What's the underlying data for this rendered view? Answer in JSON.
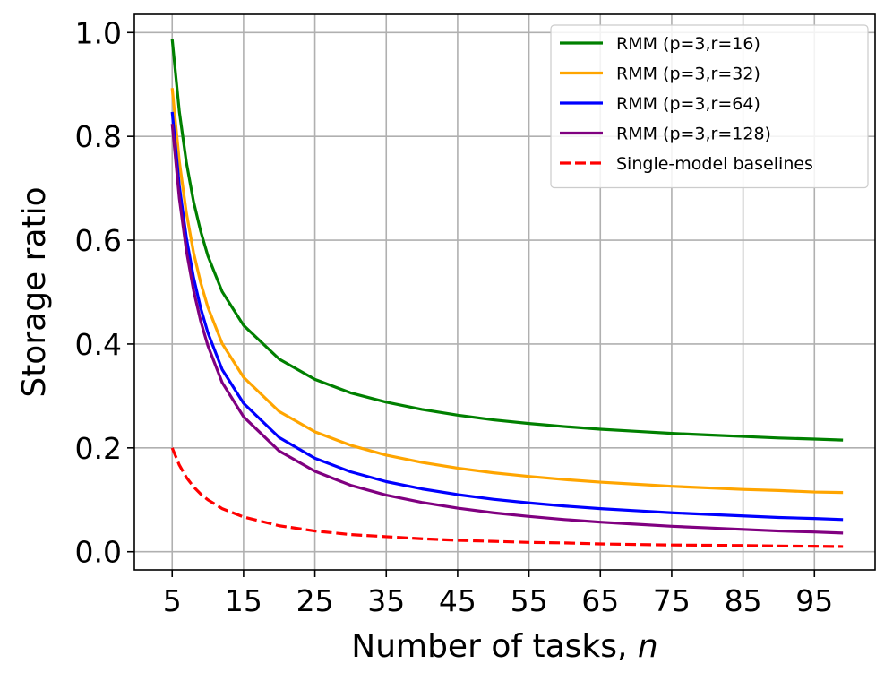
{
  "chart_data": {
    "type": "line",
    "title": "",
    "xlabel": "Number of tasks, ",
    "xlabel_var": "n",
    "ylabel": "Storage ratio",
    "xlim": [
      -0.3,
      103.5
    ],
    "ylim": [
      -0.035,
      1.035
    ],
    "xticks": [
      5,
      15,
      25,
      35,
      45,
      55,
      65,
      75,
      85,
      95
    ],
    "yticks": [
      0.0,
      0.2,
      0.4,
      0.6,
      0.8,
      1.0
    ],
    "ytick_labels": [
      "0.0",
      "0.2",
      "0.4",
      "0.6",
      "0.8",
      "1.0"
    ],
    "grid": true,
    "legend_position": "top-right",
    "x": [
      5,
      6,
      7,
      8,
      9,
      10,
      12,
      15,
      20,
      25,
      30,
      35,
      40,
      45,
      50,
      55,
      60,
      65,
      70,
      75,
      80,
      85,
      90,
      95,
      99
    ],
    "series": [
      {
        "name": "RMM (p=3,r=16)",
        "color": "#008000",
        "dashed": false,
        "values": [
          0.987,
          0.848,
          0.749,
          0.674,
          0.617,
          0.57,
          0.501,
          0.436,
          0.371,
          0.332,
          0.306,
          0.288,
          0.274,
          0.263,
          0.254,
          0.247,
          0.241,
          0.236,
          0.232,
          0.228,
          0.225,
          0.222,
          0.219,
          0.217,
          0.215
        ]
      },
      {
        "name": "RMM (p=3,r=32)",
        "color": "#FFA500",
        "dashed": false,
        "values": [
          0.893,
          0.752,
          0.652,
          0.576,
          0.518,
          0.471,
          0.401,
          0.336,
          0.27,
          0.231,
          0.205,
          0.186,
          0.172,
          0.161,
          0.152,
          0.145,
          0.139,
          0.134,
          0.13,
          0.126,
          0.123,
          0.12,
          0.118,
          0.115,
          0.114
        ]
      },
      {
        "name": "RMM (p=3,r=64)",
        "color": "#0000FF",
        "dashed": false,
        "values": [
          0.847,
          0.705,
          0.604,
          0.528,
          0.469,
          0.422,
          0.351,
          0.286,
          0.22,
          0.18,
          0.154,
          0.135,
          0.121,
          0.11,
          0.101,
          0.094,
          0.088,
          0.083,
          0.079,
          0.075,
          0.072,
          0.069,
          0.066,
          0.064,
          0.062
        ]
      },
      {
        "name": "RMM (p=3,r=128)",
        "color": "#800080",
        "dashed": false,
        "values": [
          0.824,
          0.681,
          0.579,
          0.503,
          0.444,
          0.397,
          0.326,
          0.26,
          0.194,
          0.155,
          0.128,
          0.109,
          0.095,
          0.084,
          0.075,
          0.068,
          0.062,
          0.057,
          0.053,
          0.049,
          0.046,
          0.043,
          0.04,
          0.038,
          0.036
        ]
      },
      {
        "name": "Single-model baselines",
        "color": "#FF0000",
        "dashed": true,
        "values": [
          0.2,
          0.167,
          0.143,
          0.125,
          0.111,
          0.1,
          0.083,
          0.067,
          0.05,
          0.04,
          0.033,
          0.029,
          0.025,
          0.022,
          0.02,
          0.018,
          0.017,
          0.015,
          0.014,
          0.013,
          0.0125,
          0.012,
          0.011,
          0.0105,
          0.01
        ]
      }
    ]
  }
}
